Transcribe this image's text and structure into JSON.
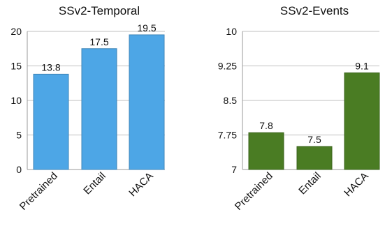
{
  "chart_data": [
    {
      "type": "bar",
      "title": "SSv2-Temporal",
      "categories": [
        "Pretrained",
        "Entail",
        "HACA"
      ],
      "values": [
        13.8,
        17.5,
        19.5
      ],
      "value_labels": [
        "13.8",
        "17.5",
        "19.5"
      ],
      "ylim": [
        0,
        20
      ],
      "yticks": [
        "0",
        "5",
        "10",
        "15",
        "20"
      ],
      "ytick_values": [
        0,
        5,
        10,
        15,
        20
      ],
      "xlabel": "",
      "ylabel": "",
      "grid": true,
      "color": "#4da6e6"
    },
    {
      "type": "bar",
      "title": "SSv2-Events",
      "categories": [
        "Pretrained",
        "Entail",
        "HACA"
      ],
      "values": [
        7.8,
        7.5,
        9.1
      ],
      "value_labels": [
        "7.8",
        "7.5",
        "9.1"
      ],
      "ylim": [
        7,
        10
      ],
      "yticks": [
        "7",
        "7.75",
        "8.5",
        "9.25",
        "10"
      ],
      "ytick_values": [
        7,
        7.75,
        8.5,
        9.25,
        10
      ],
      "xlabel": "",
      "ylabel": "",
      "grid": true,
      "color": "#4a7c23"
    }
  ]
}
